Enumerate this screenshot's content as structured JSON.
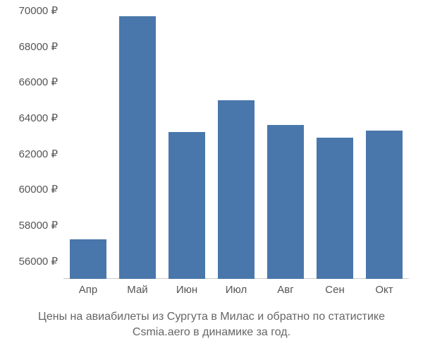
{
  "chart": {
    "type": "bar",
    "categories": [
      "Апр",
      "Май",
      "Июн",
      "Июл",
      "Авг",
      "Сен",
      "Окт"
    ],
    "values": [
      57200,
      69700,
      63200,
      65000,
      63600,
      62900,
      63300
    ],
    "bar_color": "#4a77ab",
    "background_color": "#ffffff",
    "text_color": "#555555",
    "y_min": 55000,
    "y_max": 70000,
    "y_ticks": [
      56000,
      58000,
      60000,
      62000,
      64000,
      66000,
      68000,
      70000
    ],
    "y_tick_suffix": " ₽",
    "tick_fontsize": 15,
    "bar_width_ratio": 0.73,
    "baseline_color": "#cccccc",
    "caption": "Цены на авиабилеты из Сургута в Милас и обратно по статистике Csmia.aero в динамике за год.",
    "caption_fontsize": 16,
    "caption_color": "#666666"
  }
}
